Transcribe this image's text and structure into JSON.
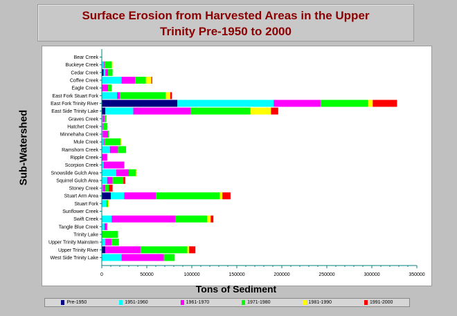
{
  "colors": {
    "background": "#c0c0c0",
    "title": "#8b0000",
    "plot_bg": "#ffffff",
    "axis": "#008080",
    "series": [
      "#000080",
      "#00ffff",
      "#ff00ff",
      "#00ff00",
      "#ffff00",
      "#ff0000"
    ]
  },
  "chart_data": {
    "type": "bar",
    "orientation": "horizontal",
    "stacked": true,
    "title": "Surface Erosion from Harvested Areas in the Upper Trinity Pre-1950 to 2000",
    "title_lines": [
      "Surface Erosion from Harvested Areas in the Upper",
      "Trinity Pre-1950 to 2000"
    ],
    "xlabel": "Tons of Sediment",
    "ylabel": "Sub-Watershed",
    "xlim": [
      0,
      350000
    ],
    "xticks": [
      "0",
      "50000",
      "100000",
      "150000",
      "200000",
      "250000",
      "300000",
      "350000"
    ],
    "grid": false,
    "legend_position": "bottom",
    "categories": [
      "Bear Creek",
      "Buckeye Creek",
      "Cedar Creek",
      "Coffee Creek",
      "Eagle Creek",
      "East Fork Stuart Fork",
      "East Fork Trinity River",
      "East Side Trinity Lake",
      "Graves Creek",
      "Hatchet Creek",
      "Minnehaha Creek",
      "Mule Creek",
      "Ramshorn Creek",
      "Ripple Creek",
      "Scorpion Creek",
      "Snowslide Gulch Area",
      "Squirrel Gulch Area",
      "Stoney Creek",
      "Stuart Arm Area",
      "Stuart Fork",
      "Sunflower Creek",
      "Swift Creek",
      "Tangle Blue Creek",
      "Trinity Lake",
      "Upper Trinity Mainstem",
      "Upper Trinity River",
      "West Side Trinity Lake"
    ],
    "series": [
      {
        "name": "Pre-1950",
        "values": [
          0,
          0,
          2000,
          0,
          0,
          0,
          84000,
          4000,
          0,
          0,
          0,
          0,
          0,
          0,
          0,
          0,
          0,
          0,
          10000,
          0,
          0,
          0,
          0,
          0,
          0,
          4000,
          0
        ]
      },
      {
        "name": "1951-1960",
        "values": [
          0,
          2000,
          2000,
          22000,
          0,
          17000,
          107000,
          31000,
          1000,
          1000,
          1000,
          2000,
          9000,
          0,
          2000,
          16000,
          6000,
          1000,
          15000,
          5000,
          0,
          11000,
          3000,
          0,
          4000,
          0,
          22000
        ]
      },
      {
        "name": "1961-1970",
        "values": [
          0,
          1000,
          3000,
          15000,
          7000,
          3000,
          52000,
          64000,
          2000,
          1000,
          6000,
          1000,
          9000,
          6000,
          23000,
          14000,
          6000,
          3000,
          35000,
          0,
          0,
          71000,
          3000,
          0,
          7000,
          39000,
          47000
        ]
      },
      {
        "name": "1971-1980",
        "values": [
          0,
          8000,
          5000,
          12000,
          4000,
          51000,
          53000,
          66000,
          2000,
          4000,
          1000,
          18000,
          9000,
          0,
          0,
          8000,
          12000,
          4000,
          71000,
          2000,
          0,
          35000,
          0,
          18000,
          8000,
          52000,
          12000
        ]
      },
      {
        "name": "1981-1990",
        "values": [
          0,
          1000,
          0,
          6000,
          0,
          5000,
          5000,
          23000,
          0,
          0,
          0,
          1000,
          0,
          0,
          0,
          1000,
          0,
          0,
          3000,
          1000,
          0,
          4000,
          0,
          0,
          0,
          2000,
          0
        ]
      },
      {
        "name": "1991-2000",
        "values": [
          0,
          0,
          0,
          1000,
          0,
          2000,
          27000,
          8000,
          0,
          0,
          0,
          0,
          0,
          0,
          0,
          0,
          2000,
          4000,
          9000,
          0,
          0,
          3000,
          0,
          0,
          0,
          7000,
          0
        ]
      }
    ]
  }
}
